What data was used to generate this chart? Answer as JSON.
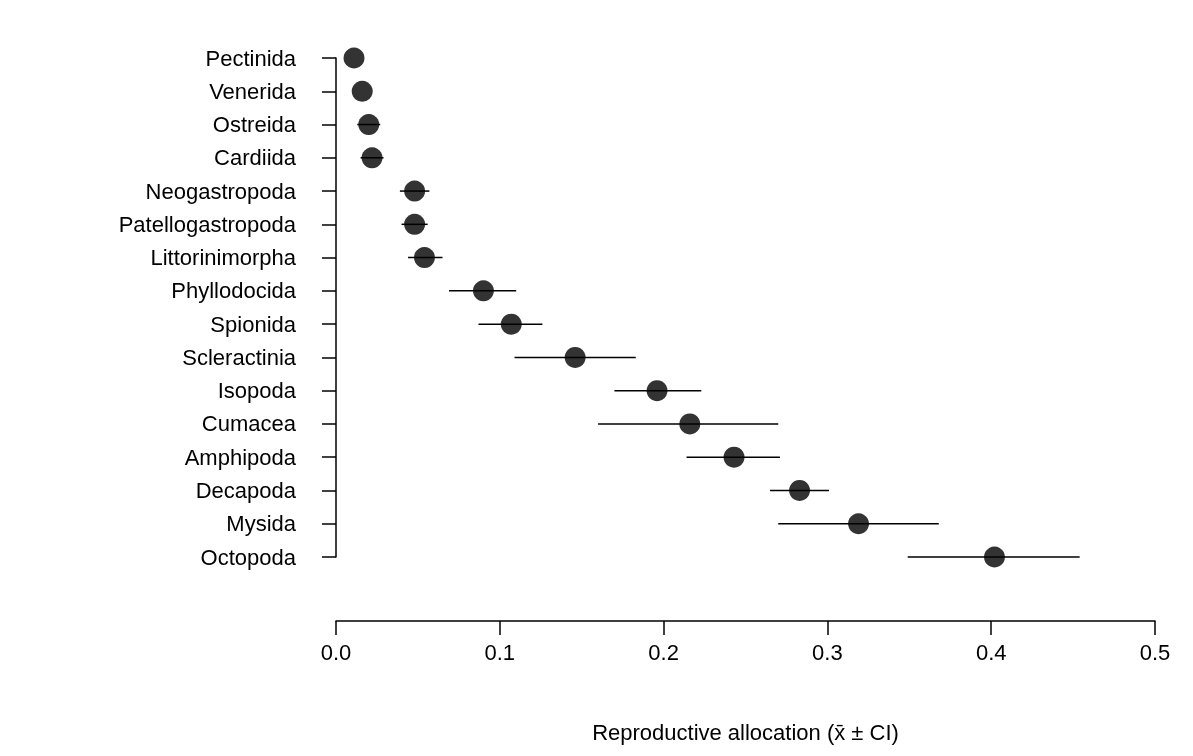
{
  "chart_data": {
    "type": "scatter",
    "orientation": "horizontal",
    "xlabel": "Reproductive allocation (x̄ ± CI)",
    "categories": [
      "Pectinida",
      "Venerida",
      "Ostreida",
      "Cardiida",
      "Neogastropoda",
      "Patellogastropoda",
      "Littorinimorpha",
      "Phyllodocida",
      "Spionida",
      "Scleractinia",
      "Isopoda",
      "Cumacea",
      "Amphipoda",
      "Decapoda",
      "Mysida",
      "Octopoda"
    ],
    "values": [
      0.011,
      0.016,
      0.02,
      0.022,
      0.048,
      0.048,
      0.054,
      0.09,
      0.107,
      0.146,
      0.196,
      0.216,
      0.243,
      0.283,
      0.319,
      0.402
    ],
    "errors": [
      null,
      null,
      0.007,
      0.007,
      0.009,
      0.008,
      [
        0.044,
        0.065
      ],
      [
        0.069,
        0.11
      ],
      [
        0.087,
        0.126
      ],
      [
        0.109,
        0.183
      ],
      [
        0.17,
        0.223
      ],
      [
        0.16,
        0.27
      ],
      [
        0.214,
        0.271
      ],
      [
        0.265,
        0.301
      ],
      [
        0.27,
        0.368
      ],
      [
        0.349,
        0.454
      ]
    ],
    "color": "#000000",
    "marker": "circle",
    "grid": false,
    "xlim": [
      0,
      0.5
    ],
    "xticks": [
      {
        "value": 0,
        "label": "0.0"
      },
      0.1,
      0.2,
      0.3,
      0.4,
      0.5
    ]
  }
}
